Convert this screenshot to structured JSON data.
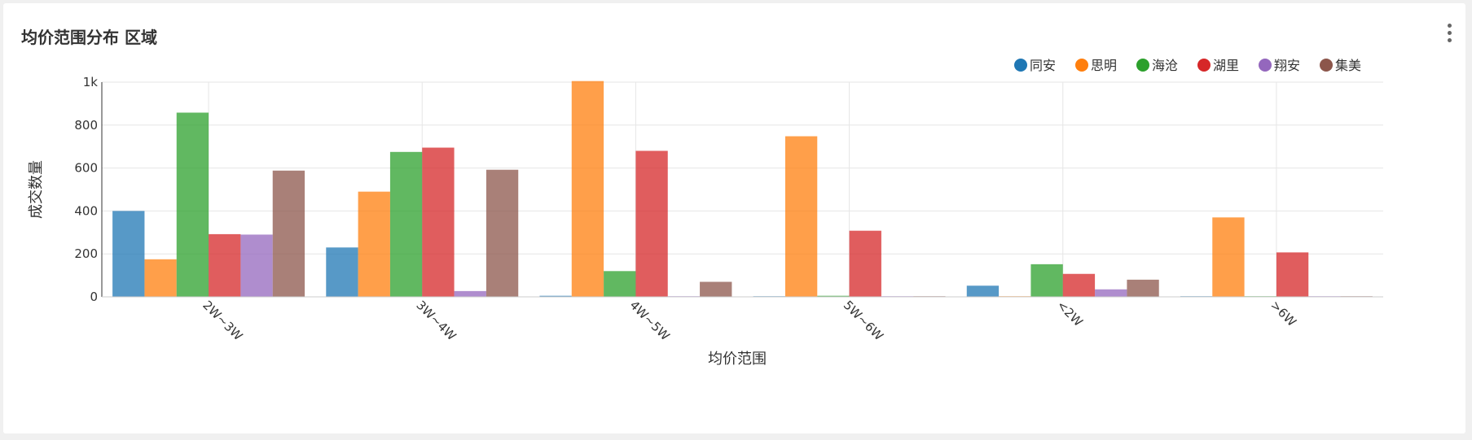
{
  "card": {
    "title": "均价范围分布 区域"
  },
  "chart_data": {
    "type": "bar",
    "title": "均价范围分布 区域",
    "xlabel": "均价范围",
    "ylabel": "成交数量",
    "ylim": [
      0,
      1000
    ],
    "y_ticks": [
      0,
      200,
      400,
      600,
      800,
      1000
    ],
    "y_tick_labels": [
      "0",
      "200",
      "400",
      "600",
      "800",
      "1k"
    ],
    "grid": true,
    "legend_position": "top-right",
    "categories": [
      "2W~3W",
      "3W~4W",
      "4W~5W",
      "5W~6W",
      "<2W",
      ">6W"
    ],
    "series": [
      {
        "name": "同安",
        "color": "#1f77b4",
        "values": [
          400,
          230,
          5,
          3,
          52,
          3
        ]
      },
      {
        "name": "思明",
        "color": "#ff7f0e",
        "values": [
          175,
          490,
          1005,
          748,
          3,
          370
        ]
      },
      {
        "name": "海沧",
        "color": "#2ca02c",
        "values": [
          858,
          675,
          120,
          5,
          152,
          3
        ]
      },
      {
        "name": "湖里",
        "color": "#d62728",
        "values": [
          292,
          695,
          680,
          308,
          107,
          207
        ]
      },
      {
        "name": "翔安",
        "color": "#9467bd",
        "values": [
          290,
          27,
          3,
          3,
          35,
          3
        ]
      },
      {
        "name": "集美",
        "color": "#8c564b",
        "values": [
          588,
          592,
          70,
          3,
          80,
          3
        ]
      }
    ]
  }
}
